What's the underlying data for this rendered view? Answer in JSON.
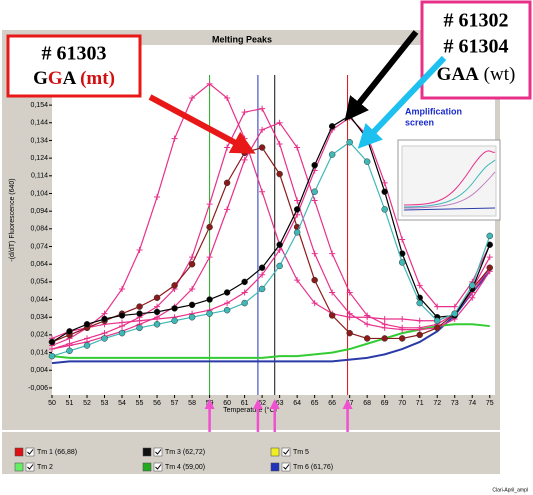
{
  "chart_data": {
    "type": "line",
    "title": "Melting Peaks",
    "y_label": "-(d/dT) Fluorescence (640)",
    "x_label": "Temperature (°C)",
    "xlim": [
      50,
      75.3
    ],
    "ylim": [
      -0.01,
      0.188
    ],
    "xticks": [
      50,
      51,
      52,
      53,
      54,
      55,
      56,
      57,
      58,
      59,
      60,
      61,
      62,
      63,
      64,
      65,
      66,
      67,
      68,
      69,
      70,
      71,
      72,
      73,
      74,
      75
    ],
    "yticks": [
      {
        "value": 0.154,
        "label": "0,154"
      },
      {
        "value": 0.144,
        "label": "0,144"
      },
      {
        "value": 0.134,
        "label": "0,134"
      },
      {
        "value": 0.124,
        "label": "0,124"
      },
      {
        "value": 0.114,
        "label": "0,114"
      },
      {
        "value": 0.104,
        "label": "0,104"
      },
      {
        "value": 0.094,
        "label": "0,094"
      },
      {
        "value": 0.084,
        "label": "0,084"
      },
      {
        "value": 0.074,
        "label": "0,074"
      },
      {
        "value": 0.064,
        "label": "0,064"
      },
      {
        "value": 0.054,
        "label": "0,054"
      },
      {
        "value": 0.044,
        "label": "0,044"
      },
      {
        "value": 0.034,
        "label": "0,034"
      },
      {
        "value": 0.024,
        "label": "0,024"
      },
      {
        "value": 0.014,
        "label": "0,014"
      },
      {
        "value": 0.004,
        "label": "0,004"
      },
      {
        "value": -0.006,
        "label": "-0,006"
      }
    ],
    "x": [
      50,
      51,
      52,
      53,
      54,
      55,
      56,
      57,
      58,
      59,
      60,
      61,
      62,
      63,
      64,
      65,
      66,
      67,
      68,
      69,
      70,
      71,
      72,
      73,
      74,
      75
    ],
    "series": [
      {
        "color": "#2a3aa8",
        "marker": "none",
        "values": [
          0.008,
          0.009,
          0.009,
          0.009,
          0.009,
          0.009,
          0.009,
          0.009,
          0.009,
          0.009,
          0.009,
          0.009,
          0.009,
          0.009,
          0.009,
          0.009,
          0.009,
          0.01,
          0.011,
          0.013,
          0.016,
          0.02,
          0.026,
          0.035,
          0.048,
          0.06
        ]
      },
      {
        "color": "#33cc33",
        "marker": "none",
        "values": [
          0.012,
          0.011,
          0.011,
          0.011,
          0.011,
          0.011,
          0.011,
          0.011,
          0.011,
          0.011,
          0.011,
          0.011,
          0.011,
          0.012,
          0.012,
          0.013,
          0.014,
          0.016,
          0.019,
          0.022,
          0.025,
          0.027,
          0.029,
          0.03,
          0.03,
          0.029
        ]
      },
      {
        "color": "#e8308a",
        "marker": "plus",
        "values": [
          0.018,
          0.022,
          0.028,
          0.036,
          0.05,
          0.072,
          0.102,
          0.135,
          0.158,
          0.166,
          0.158,
          0.135,
          0.105,
          0.075,
          0.055,
          0.042,
          0.036,
          0.034,
          0.034,
          0.033,
          0.033,
          0.032,
          0.032,
          0.036,
          0.048,
          0.062
        ]
      },
      {
        "color": "#e8308a",
        "marker": "plus",
        "values": [
          0.016,
          0.019,
          0.022,
          0.025,
          0.029,
          0.034,
          0.04,
          0.05,
          0.068,
          0.098,
          0.13,
          0.15,
          0.152,
          0.132,
          0.1,
          0.07,
          0.048,
          0.036,
          0.03,
          0.028,
          0.027,
          0.027,
          0.028,
          0.033,
          0.045,
          0.06
        ]
      },
      {
        "color": "#e8308a",
        "marker": "plus",
        "values": [
          0.016,
          0.018,
          0.02,
          0.023,
          0.026,
          0.03,
          0.034,
          0.04,
          0.05,
          0.068,
          0.095,
          0.123,
          0.14,
          0.144,
          0.13,
          0.1,
          0.07,
          0.048,
          0.035,
          0.03,
          0.028,
          0.028,
          0.03,
          0.036,
          0.05,
          0.068
        ]
      },
      {
        "color": "#e8308a",
        "marker": "plus",
        "values": [
          0.022,
          0.026,
          0.028,
          0.03,
          0.031,
          0.032,
          0.033,
          0.034,
          0.036,
          0.038,
          0.042,
          0.048,
          0.058,
          0.072,
          0.092,
          0.117,
          0.14,
          0.147,
          0.137,
          0.11,
          0.078,
          0.052,
          0.04,
          0.04,
          0.054,
          0.075
        ]
      },
      {
        "color": "#8b1a1a",
        "marker": "circle",
        "values": [
          0.02,
          0.024,
          0.028,
          0.032,
          0.036,
          0.04,
          0.045,
          0.052,
          0.064,
          0.085,
          0.11,
          0.127,
          0.13,
          0.115,
          0.085,
          0.055,
          0.035,
          0.025,
          0.022,
          0.022,
          0.022,
          0.024,
          0.028,
          0.036,
          0.05,
          0.062
        ]
      },
      {
        "color": "#000000",
        "marker": "circle",
        "values": [
          0.02,
          0.026,
          0.03,
          0.033,
          0.035,
          0.036,
          0.037,
          0.039,
          0.041,
          0.044,
          0.048,
          0.054,
          0.062,
          0.075,
          0.095,
          0.12,
          0.142,
          0.148,
          0.135,
          0.105,
          0.07,
          0.045,
          0.034,
          0.035,
          0.05,
          0.075
        ]
      },
      {
        "color": "#3fb8b8",
        "marker": "circle",
        "values": [
          0.012,
          0.015,
          0.018,
          0.022,
          0.025,
          0.028,
          0.03,
          0.032,
          0.034,
          0.036,
          0.038,
          0.042,
          0.05,
          0.063,
          0.082,
          0.105,
          0.126,
          0.133,
          0.122,
          0.095,
          0.065,
          0.042,
          0.032,
          0.036,
          0.052,
          0.08
        ]
      }
    ],
    "tm_lines": [
      {
        "name": "Tm 1 (66,88)",
        "color": "#dd1111",
        "value": 66.88
      },
      {
        "name": "Tm 2",
        "color": "#66ee66",
        "value": null
      },
      {
        "name": "Tm 3 (62,72)",
        "color": "#111111",
        "value": 62.72
      },
      {
        "name": "Tm 4 (59,00)",
        "color": "#22aa22",
        "value": 59.0
      },
      {
        "name": "Tm 5",
        "color": "#eeee22",
        "value": null
      },
      {
        "name": "Tm 6 (61,76)",
        "color": "#2233bb",
        "value": 61.76
      }
    ],
    "annotations": {
      "left_id": "# 61303",
      "left_genotype": "GGA (mt)",
      "right_ids": [
        "# 61302",
        "# 61304"
      ],
      "right_genotype": "GAA (wt)",
      "inset_caption": [
        "Amplification",
        "screen"
      ],
      "footer": "Clari-April_ampl"
    }
  }
}
